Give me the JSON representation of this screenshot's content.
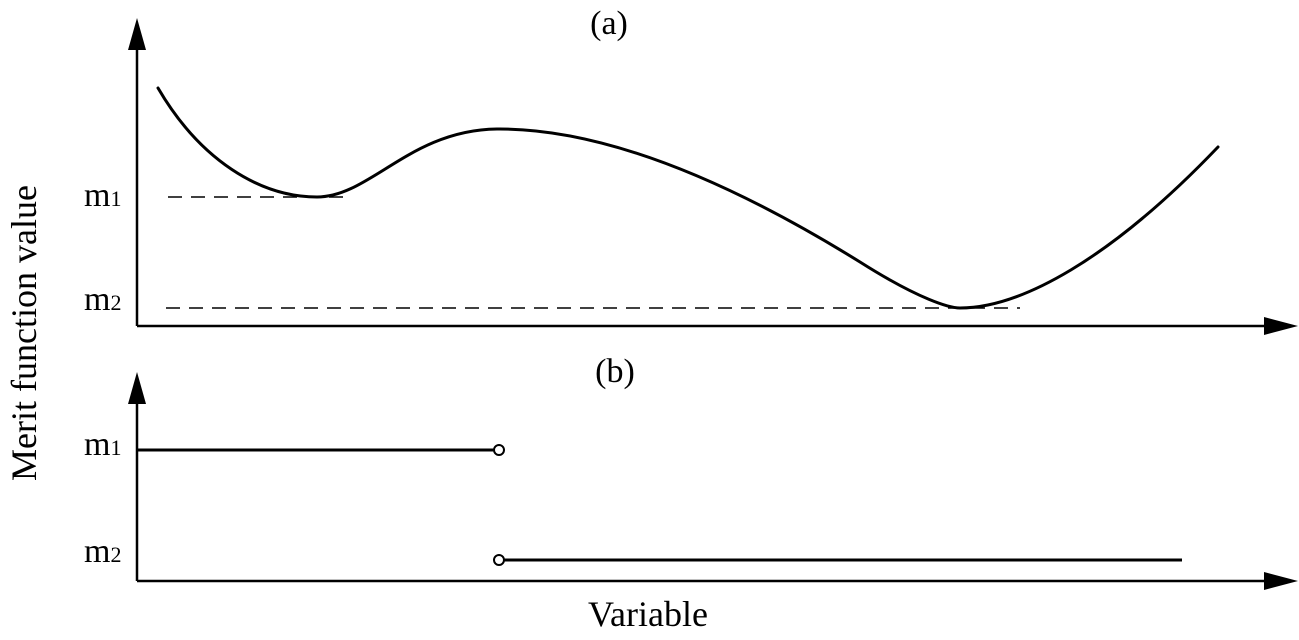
{
  "panels": {
    "a": {
      "label": "(a)"
    },
    "b": {
      "label": "(b)"
    }
  },
  "y_axis": {
    "title": "Merit function value"
  },
  "x_axis": {
    "title": "Variable"
  },
  "levels": {
    "m1": {
      "base": "m",
      "sub": "1"
    },
    "m2": {
      "base": "m",
      "sub": "2"
    }
  }
}
